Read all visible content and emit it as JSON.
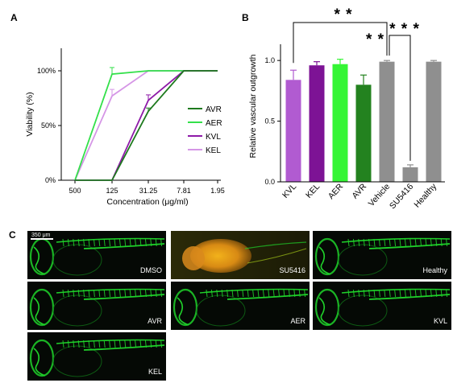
{
  "panel_labels": [
    "A",
    "B",
    "C"
  ],
  "colors": {
    "AVR": "#1e7a1e",
    "AER": "#33e04a",
    "KVL": "#8e1aa8",
    "KEL": "#d596e6",
    "KVL_bar": "#b15bd1",
    "KEL_bar": "#7d1395",
    "AER_bar": "#35f535",
    "AVR_bar": "#23821f",
    "grey_bar": "#8f8f8f"
  },
  "chart_data": [
    {
      "panel": "A",
      "type": "line",
      "ylabel": "Viability (%)",
      "xlabel": "Concentration (μg/ml)",
      "x": [
        "500",
        "125",
        "31.25",
        "7.81",
        "1.95"
      ],
      "y_ticks": [
        "0%",
        "50%",
        "100%"
      ],
      "ylim": [
        0,
        110
      ],
      "series": [
        {
          "name": "AVR",
          "values": [
            0,
            0,
            63,
            100,
            100
          ]
        },
        {
          "name": "AER",
          "values": [
            0,
            97,
            100,
            100,
            100
          ]
        },
        {
          "name": "KVL",
          "values": [
            0,
            0,
            73,
            100,
            100
          ]
        },
        {
          "name": "KEL",
          "values": [
            0,
            77,
            100,
            100,
            100
          ]
        }
      ],
      "errors": [
        {
          "series": "AER",
          "x": "125",
          "err": 6
        },
        {
          "series": "KEL",
          "x": "125",
          "err": 6
        },
        {
          "series": "KVL",
          "x": "31.25",
          "err": 5
        },
        {
          "series": "AVR",
          "x": "31.25",
          "err": 3
        }
      ],
      "legend_position": "right"
    },
    {
      "panel": "B",
      "type": "bar",
      "ylabel": "Relative vascular outgrowth",
      "categories": [
        "KVL",
        "KEL",
        "AER",
        "AVR",
        "Vehicle",
        "SU5416",
        "Healthy"
      ],
      "values": [
        0.84,
        0.96,
        0.97,
        0.8,
        0.99,
        0.12,
        0.99
      ],
      "errors": [
        0.08,
        0.03,
        0.04,
        0.08,
        0.01,
        0.02,
        0.01
      ],
      "y_ticks": [
        "0.0",
        "0.5",
        "1.0"
      ],
      "ylim": [
        0,
        1.2
      ],
      "significance": [
        {
          "from": "KVL",
          "to": "Vehicle",
          "label": "* *"
        },
        {
          "from": "AVR",
          "to": "Vehicle",
          "label": "* *"
        },
        {
          "from": "Vehicle",
          "to": "SU5416",
          "label": "* * *"
        }
      ]
    }
  ],
  "panel_c": {
    "scale_bar_label": "350 μm",
    "images": [
      {
        "label": "DMSO",
        "style": "green"
      },
      {
        "label": "SU5416",
        "style": "orange"
      },
      {
        "label": "Healthy",
        "style": "green"
      },
      {
        "label": "AVR",
        "style": "green"
      },
      {
        "label": "AER",
        "style": "green"
      },
      {
        "label": "KVL",
        "style": "green"
      },
      {
        "label": "KEL",
        "style": "green"
      }
    ]
  }
}
